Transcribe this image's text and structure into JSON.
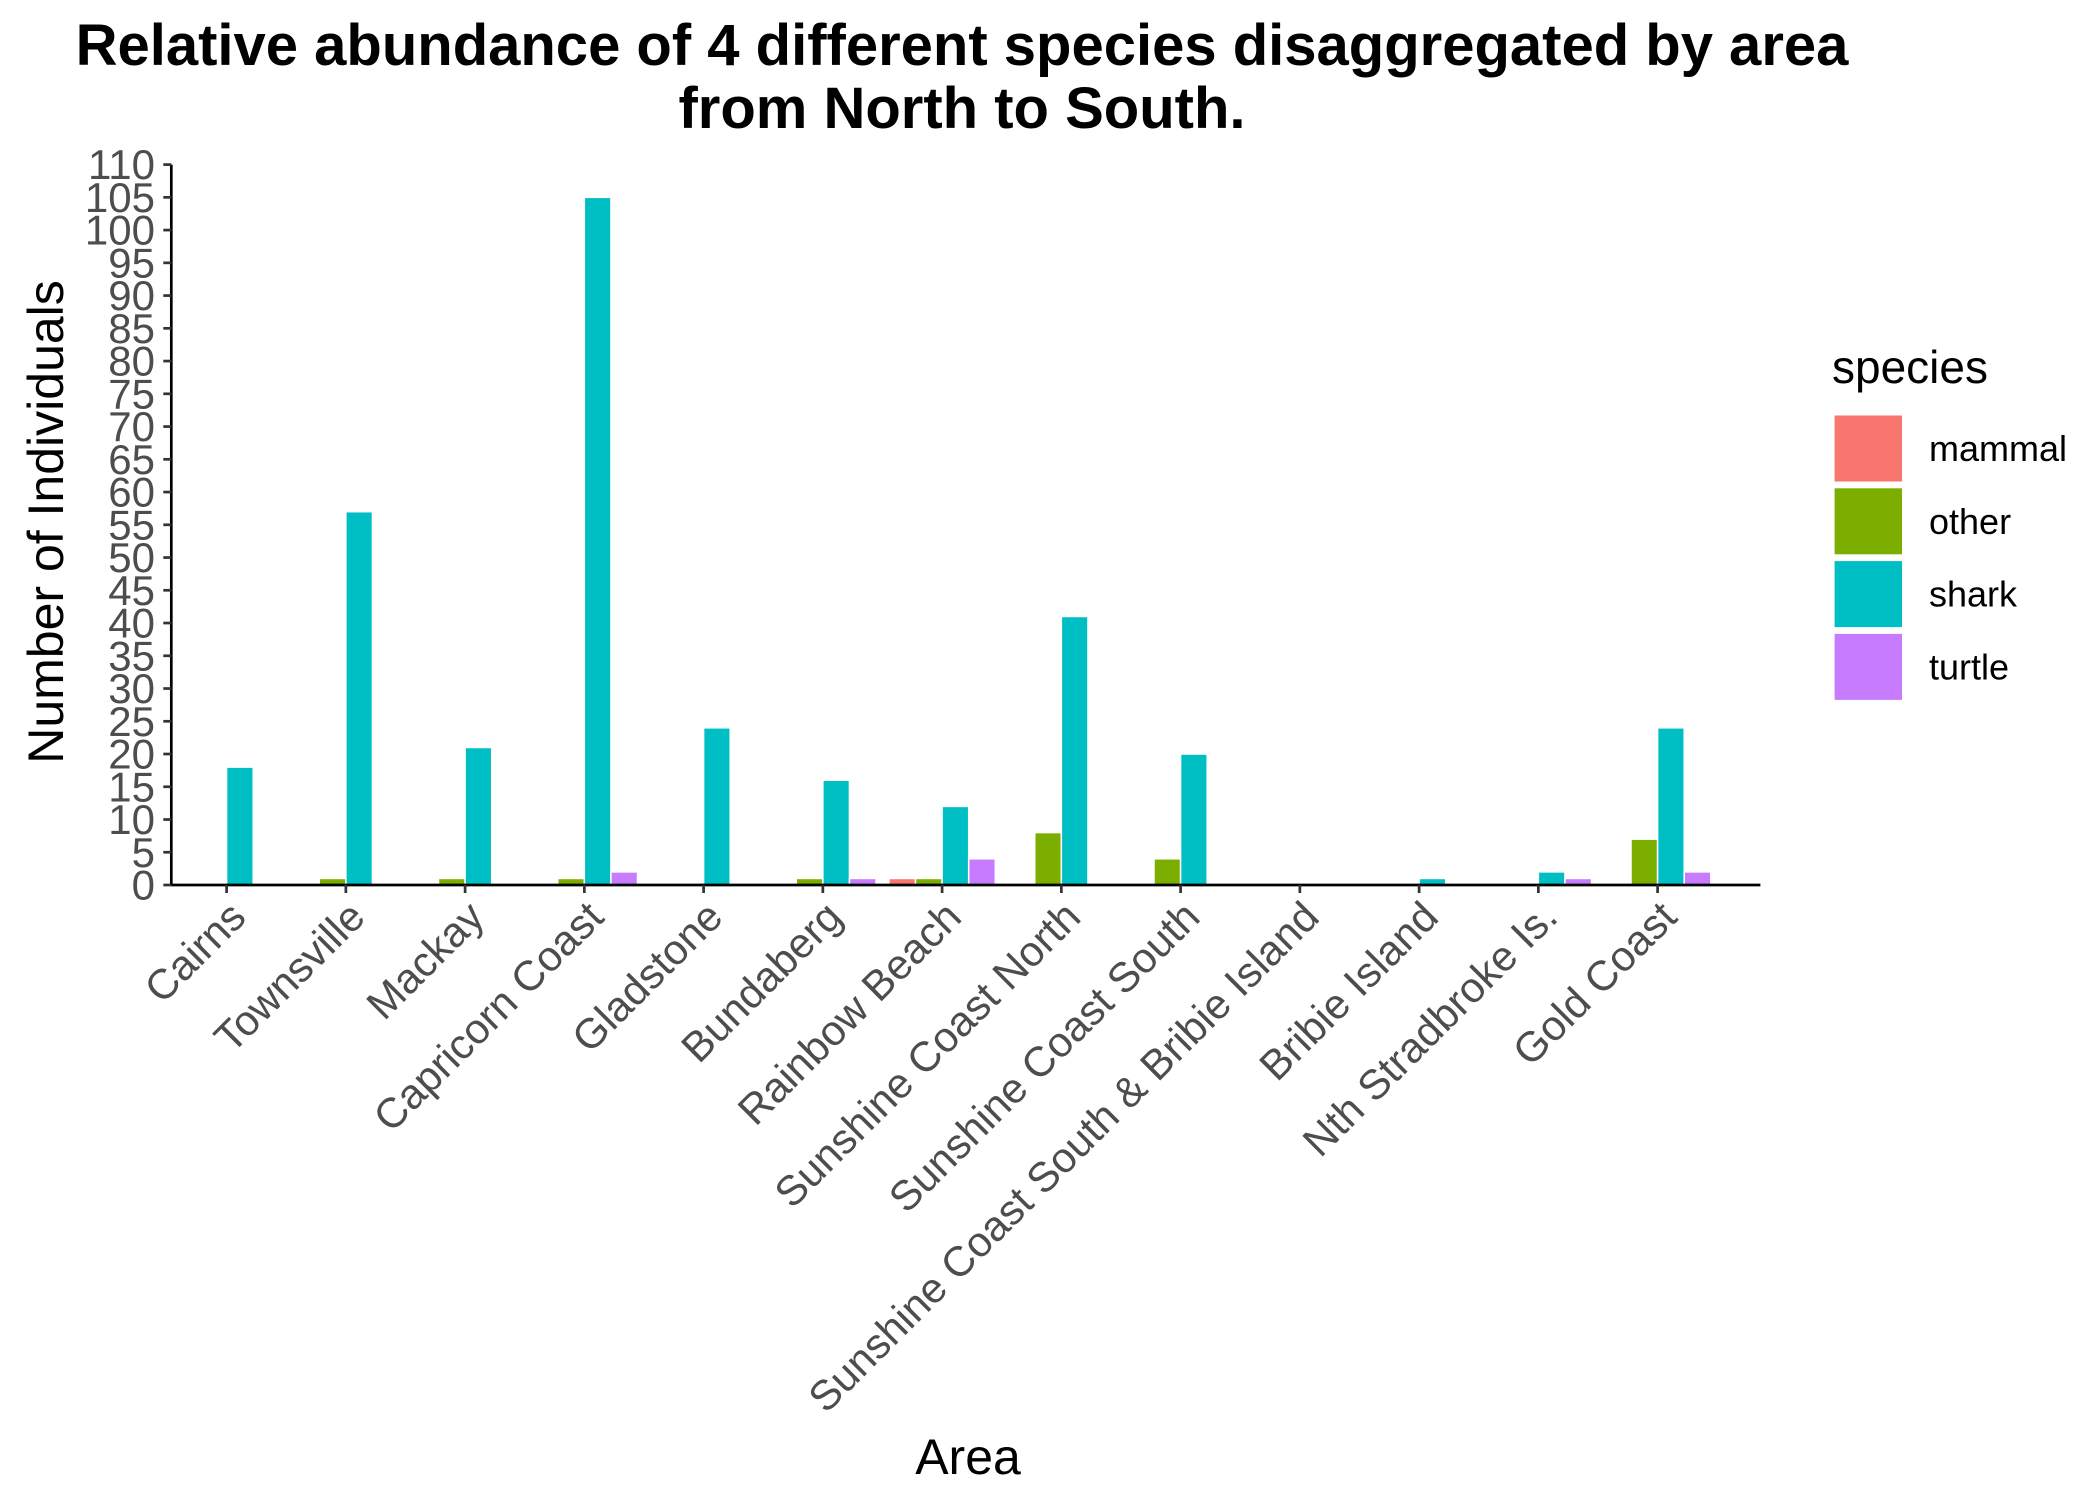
{
  "chart_data": {
    "type": "bar",
    "title_lines": [
      "Relative abundance of 4 different species disaggregated by area",
      "from North to South."
    ],
    "xlabel": "Area",
    "ylabel": "Number of Individuals",
    "ylim": [
      0,
      110
    ],
    "yticks": [
      0,
      5,
      10,
      15,
      20,
      25,
      30,
      35,
      40,
      45,
      50,
      55,
      60,
      65,
      70,
      75,
      80,
      85,
      90,
      95,
      100,
      105,
      110
    ],
    "grid": false,
    "legend_title": "species",
    "legend_position": "right",
    "categories": [
      "Cairns",
      "Townsville",
      "Mackay",
      "Capricorn Coast",
      "Gladstone",
      "Bundaberg",
      "Rainbow Beach",
      "Sunshine Coast North",
      "Sunshine Coast South",
      "Sunshine Coast South & Bribie Island",
      "Bribie Island",
      "Nth Stradbroke Is.",
      "Gold Coast"
    ],
    "series": [
      {
        "name": "mammal",
        "color": "#F8766D",
        "values": [
          0,
          0,
          0,
          0,
          0,
          0,
          1,
          0,
          0,
          0,
          0,
          0,
          0
        ]
      },
      {
        "name": "other",
        "color": "#7CAE00",
        "values": [
          0,
          1,
          1,
          1,
          0,
          1,
          1,
          8,
          4,
          0,
          0,
          0,
          7
        ]
      },
      {
        "name": "shark",
        "color": "#00BFC4",
        "values": [
          18,
          57,
          21,
          105,
          24,
          16,
          12,
          41,
          20,
          0,
          1,
          2,
          24
        ]
      },
      {
        "name": "turtle",
        "color": "#C77CFF",
        "values": [
          0,
          0,
          0,
          2,
          0,
          1,
          4,
          0,
          0,
          0,
          0,
          1,
          2
        ]
      }
    ]
  }
}
